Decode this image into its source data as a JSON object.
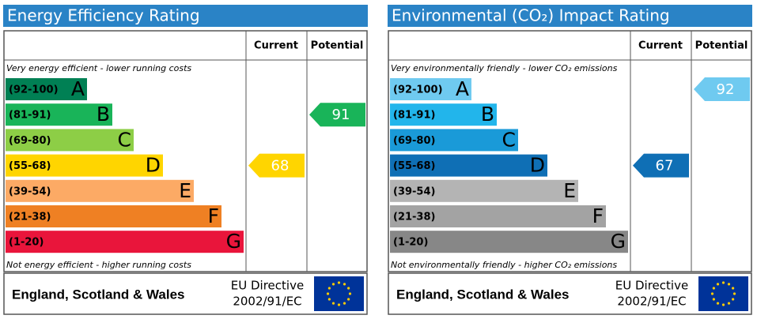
{
  "chart_data": [
    {
      "type": "epc",
      "title": "Energy Efficiency Rating",
      "columns": [
        "Current",
        "Potential"
      ],
      "top_note": "Very energy efficient - lower running costs",
      "bottom_note": "Not energy efficient - higher running costs",
      "bands": [
        {
          "range": "(92-100)",
          "letter": "A",
          "color": "#008054"
        },
        {
          "range": "(81-91)",
          "letter": "B",
          "color": "#19b459"
        },
        {
          "range": "(69-80)",
          "letter": "C",
          "color": "#8dce46"
        },
        {
          "range": "(55-68)",
          "letter": "D",
          "color": "#ffd500"
        },
        {
          "range": "(39-54)",
          "letter": "E",
          "color": "#fcaa65"
        },
        {
          "range": "(21-38)",
          "letter": "F",
          "color": "#ef8023"
        },
        {
          "range": "(1-20)",
          "letter": "G",
          "color": "#e9153b"
        }
      ],
      "current": 68,
      "current_color": "#ffd500",
      "potential": 91,
      "potential_color": "#19b459",
      "region": "England, Scotland & Wales",
      "directive": [
        "EU Directive",
        "2002/91/EC"
      ]
    },
    {
      "type": "epc",
      "title": "Environmental (CO₂) Impact Rating",
      "columns": [
        "Current",
        "Potential"
      ],
      "top_note": "Very environmentally friendly - lower CO₂ emissions",
      "bottom_note": "Not environmentally friendly - higher CO₂ emissions",
      "bands": [
        {
          "range": "(92-100)",
          "letter": "A",
          "color": "#6fcaf0"
        },
        {
          "range": "(81-91)",
          "letter": "B",
          "color": "#22b5eb"
        },
        {
          "range": "(69-80)",
          "letter": "C",
          "color": "#1a9ad8"
        },
        {
          "range": "(55-68)",
          "letter": "D",
          "color": "#0f6fb5"
        },
        {
          "range": "(39-54)",
          "letter": "E",
          "color": "#b4b4b4"
        },
        {
          "range": "(21-38)",
          "letter": "F",
          "color": "#a3a3a3"
        },
        {
          "range": "(1-20)",
          "letter": "G",
          "color": "#878787"
        }
      ],
      "current": 67,
      "current_color": "#0f6fb5",
      "potential": 92,
      "potential_color": "#6fcaf0",
      "region": "England, Scotland & Wales",
      "directive": [
        "EU Directive",
        "2002/91/EC"
      ]
    }
  ]
}
